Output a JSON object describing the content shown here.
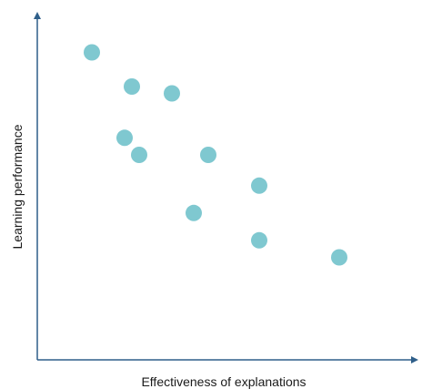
{
  "chart_data": {
    "type": "scatter",
    "title": "",
    "xlabel": "Effectiveness of explanations",
    "ylabel": "Learning performance",
    "ticks_shown": false,
    "grid": false,
    "legend": "none",
    "xlim": [
      0,
      10
    ],
    "ylim": [
      0,
      10
    ],
    "points": [
      {
        "x": 1.5,
        "y": 9.0
      },
      {
        "x": 2.6,
        "y": 8.0
      },
      {
        "x": 3.7,
        "y": 7.8
      },
      {
        "x": 2.4,
        "y": 6.5
      },
      {
        "x": 2.8,
        "y": 6.0
      },
      {
        "x": 4.7,
        "y": 6.0
      },
      {
        "x": 6.1,
        "y": 5.1
      },
      {
        "x": 4.3,
        "y": 4.3
      },
      {
        "x": 6.1,
        "y": 3.5
      },
      {
        "x": 8.3,
        "y": 3.0
      }
    ]
  },
  "colors": {
    "axis": "#2f5f8a",
    "marker": "#7fc8d0"
  }
}
